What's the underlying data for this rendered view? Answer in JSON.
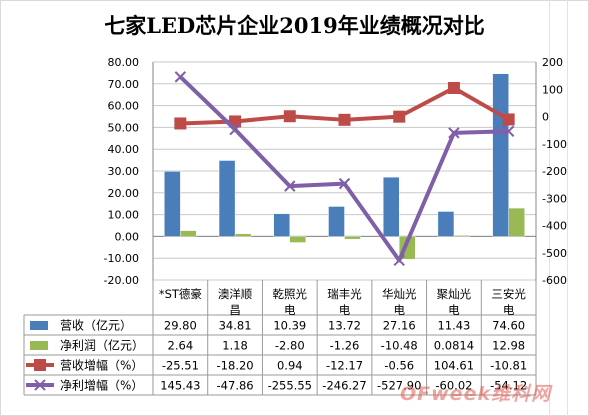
{
  "chart_data": {
    "type": "bar",
    "title": "七家LED芯片企业2019年业绩概况对比",
    "categories": [
      "*ST德豪",
      "澳洋顺昌",
      "乾照光电",
      "瑞丰光电",
      "华灿光电",
      "聚灿光电",
      "三安光电"
    ],
    "category_lines": [
      [
        "*ST德豪"
      ],
      [
        "澳洋顺",
        "昌"
      ],
      [
        "乾照光",
        "电"
      ],
      [
        "瑞丰光",
        "电"
      ],
      [
        "华灿光",
        "电"
      ],
      [
        "聚灿光",
        "电"
      ],
      [
        "三安光",
        "电"
      ]
    ],
    "y_left": {
      "ylim": [
        -20,
        80
      ],
      "ticks": [
        "-20.00",
        "-10.00",
        "0.00",
        "10.00",
        "20.00",
        "30.00",
        "40.00",
        "50.00",
        "60.00",
        "70.00",
        "80.00"
      ]
    },
    "y_right": {
      "ylim": [
        -600,
        200
      ],
      "ticks": [
        "-600",
        "-500",
        "-400",
        "-300",
        "-200",
        "-100",
        "0",
        "100",
        "200"
      ]
    },
    "series": [
      {
        "name": "营收（亿元）",
        "kind": "bar",
        "axis": "left",
        "color": "#4a7ebb",
        "values": [
          29.8,
          34.81,
          10.39,
          13.72,
          27.16,
          11.43,
          74.6
        ],
        "labels": [
          "29.80",
          "34.81",
          "10.39",
          "13.72",
          "27.16",
          "11.43",
          "74.60"
        ]
      },
      {
        "name": "净利润（亿元）",
        "kind": "bar",
        "axis": "left",
        "color": "#98b954",
        "values": [
          2.64,
          1.18,
          -2.8,
          -1.26,
          -10.48,
          0.0814,
          12.98
        ],
        "labels": [
          "2.64",
          "1.18",
          "-2.80",
          "-1.26",
          "-10.48",
          "0.0814",
          "12.98"
        ]
      },
      {
        "name": "营收增幅（%）",
        "kind": "line",
        "axis": "right",
        "color": "#be4b48",
        "values": [
          -25.51,
          -18.2,
          0.94,
          -12.17,
          -0.56,
          104.61,
          -10.81
        ],
        "labels": [
          "-25.51",
          "-18.20",
          "0.94",
          "-12.17",
          "-0.56",
          "104.61",
          "-10.81"
        ]
      },
      {
        "name": "净利增幅（%）",
        "kind": "line",
        "axis": "right",
        "color": "#7e5fa8",
        "values": [
          145.43,
          -47.86,
          -255.55,
          -246.27,
          -527.9,
          -60.02,
          -54.12
        ],
        "labels": [
          "145.43",
          "-47.86",
          "-255.55",
          "-246.27",
          "-527.90",
          "-60.02",
          "-54.12"
        ]
      }
    ],
    "legend": "table-below",
    "grid": true
  },
  "watermark": "OFweek维科网"
}
